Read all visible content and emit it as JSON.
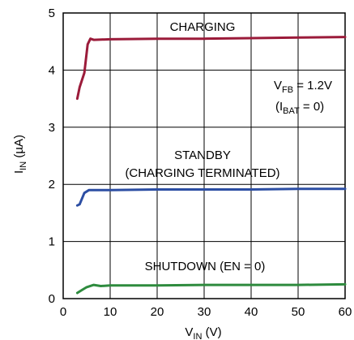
{
  "chart_data": {
    "type": "line",
    "xlabel": {
      "main": "V",
      "sub": "IN",
      "unit": " (V)"
    },
    "ylabel": {
      "main": "I",
      "sub": "IN",
      "unit": " (µA)"
    },
    "xlim": [
      0,
      60
    ],
    "ylim": [
      0,
      5
    ],
    "xticks": [
      0,
      10,
      20,
      30,
      40,
      50,
      60
    ],
    "yticks": [
      0,
      1,
      2,
      3,
      4,
      5
    ],
    "grid": true,
    "series": [
      {
        "color": "#9b1b3a",
        "points": [
          [
            3,
            3.5
          ],
          [
            3.5,
            3.7
          ],
          [
            4.5,
            3.95
          ],
          [
            5.2,
            4.45
          ],
          [
            5.8,
            4.55
          ],
          [
            6.5,
            4.53
          ],
          [
            10,
            4.54
          ],
          [
            20,
            4.55
          ],
          [
            30,
            4.55
          ],
          [
            40,
            4.56
          ],
          [
            50,
            4.57
          ],
          [
            60,
            4.58
          ]
        ]
      },
      {
        "color": "#2c4ea3",
        "points": [
          [
            3,
            1.63
          ],
          [
            3.5,
            1.65
          ],
          [
            4.5,
            1.85
          ],
          [
            5.5,
            1.9
          ],
          [
            7,
            1.9
          ],
          [
            10,
            1.9
          ],
          [
            20,
            1.91
          ],
          [
            30,
            1.91
          ],
          [
            40,
            1.91
          ],
          [
            50,
            1.92
          ],
          [
            60,
            1.92
          ]
        ]
      },
      {
        "color": "#2e8b3e",
        "points": [
          [
            3,
            0.1
          ],
          [
            4,
            0.15
          ],
          [
            5,
            0.2
          ],
          [
            6.5,
            0.24
          ],
          [
            8,
            0.22
          ],
          [
            10,
            0.23
          ],
          [
            20,
            0.23
          ],
          [
            30,
            0.24
          ],
          [
            40,
            0.24
          ],
          [
            50,
            0.24
          ],
          [
            60,
            0.25
          ]
        ]
      }
    ],
    "annotations": {
      "charging": "CHARGING",
      "vfb_main": "V",
      "vfb_sub": "FB",
      "vfb_rest": " = 1.2V",
      "ibat_open": "(I",
      "ibat_sub": "BAT",
      "ibat_rest": " = 0)",
      "standby": "STANDBY",
      "charging_terminated": "(CHARGING TERMINATED)",
      "shutdown": "SHUTDOWN (EN = 0)"
    }
  }
}
